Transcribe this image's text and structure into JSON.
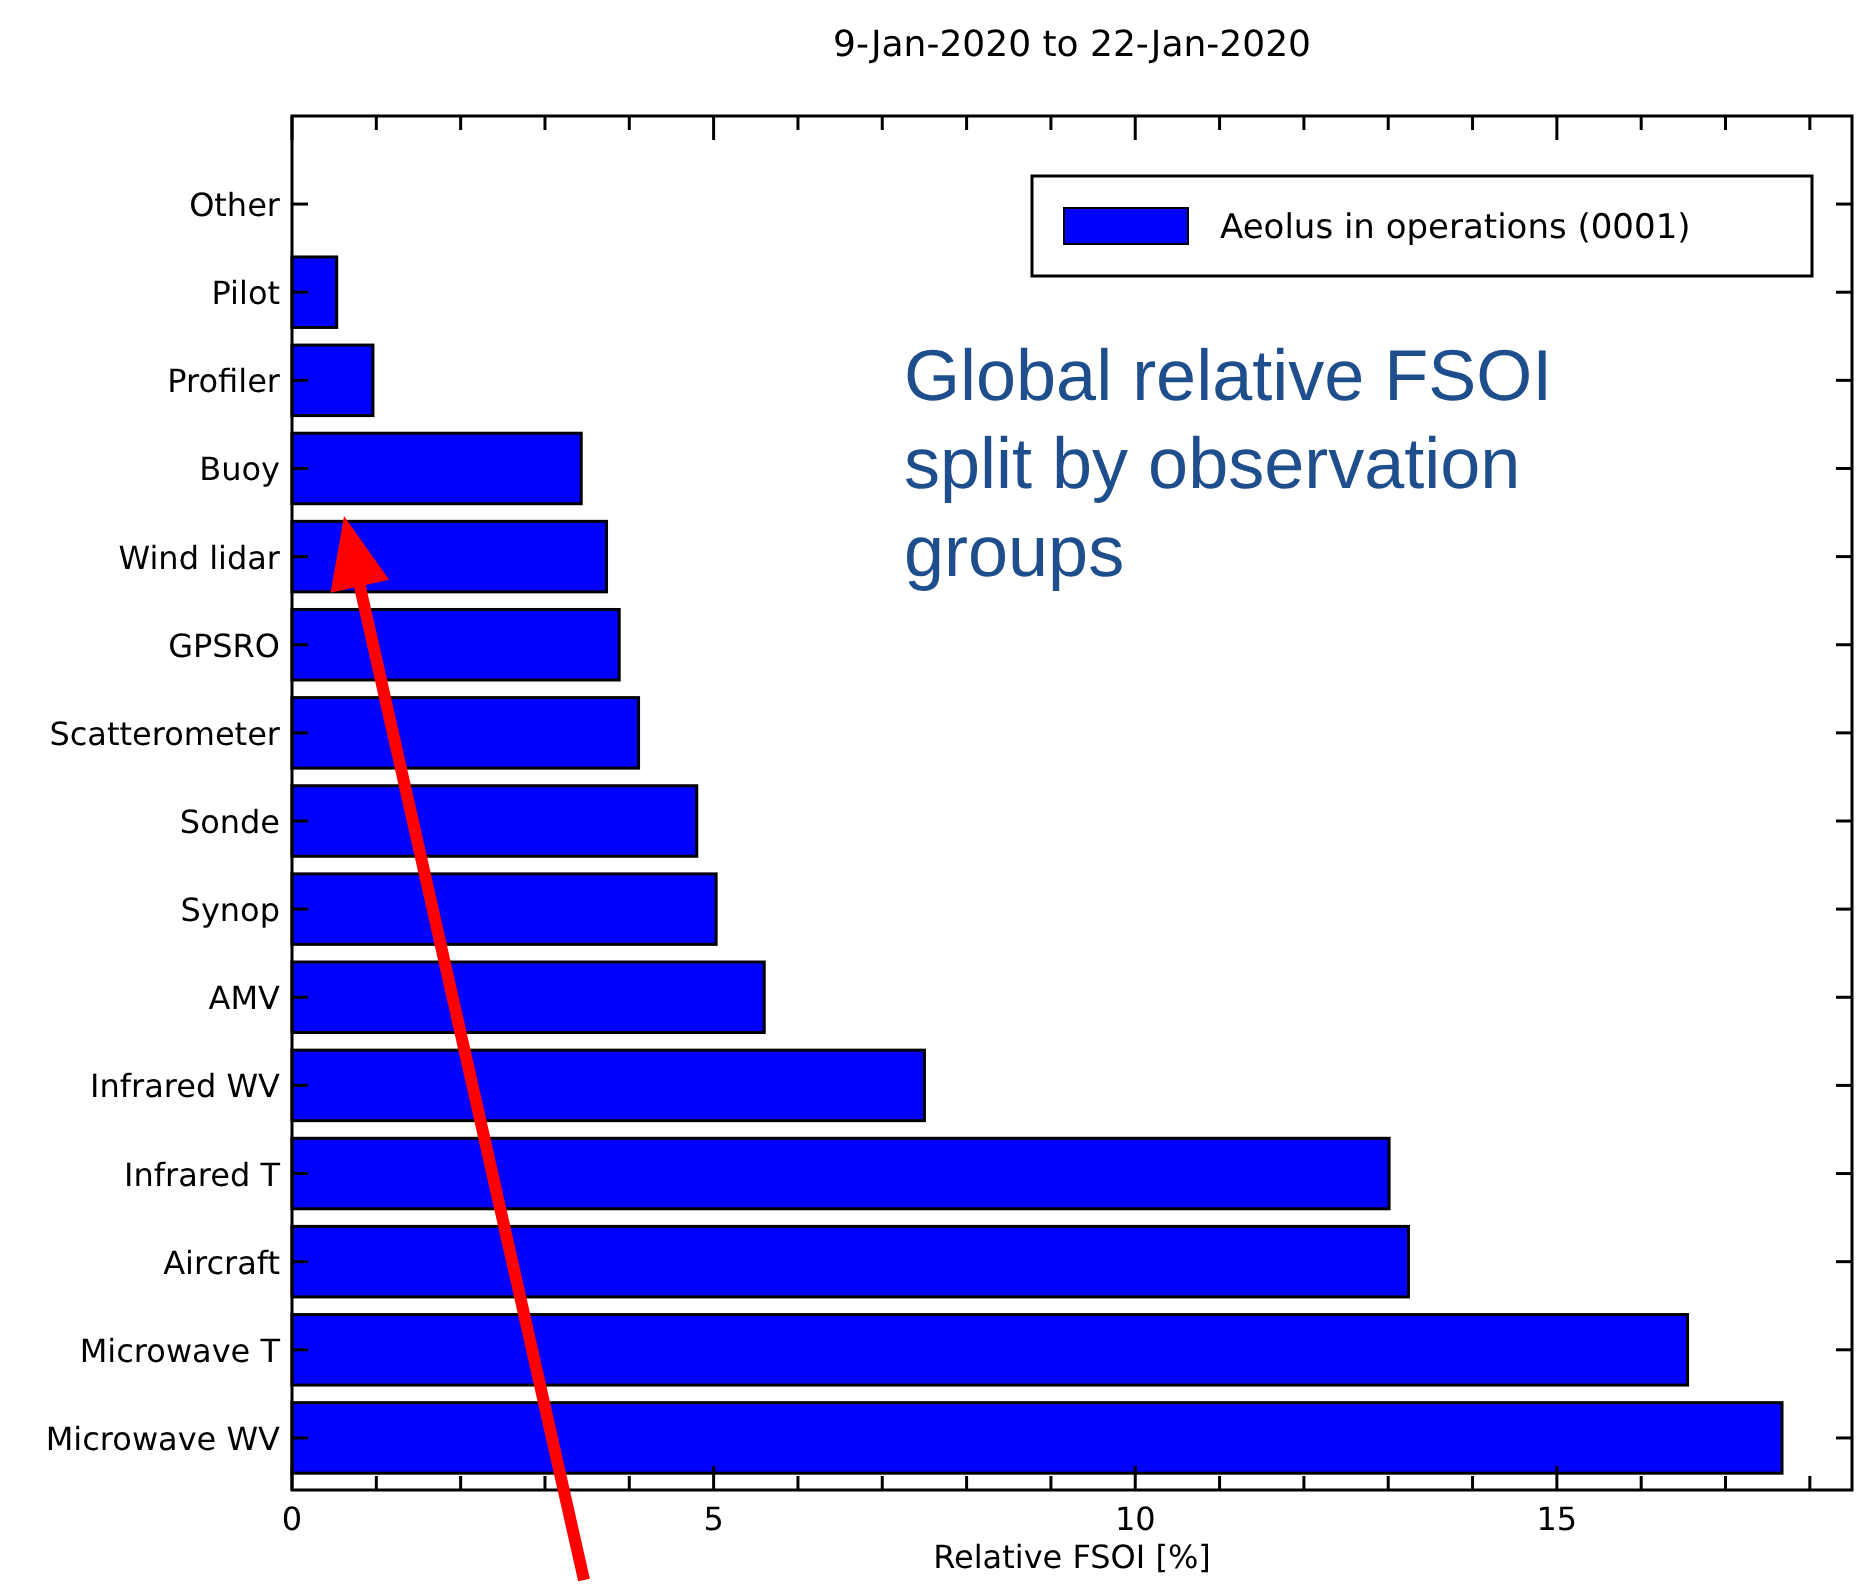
{
  "chart_data": {
    "type": "bar",
    "orientation": "horizontal",
    "title": "9-Jan-2020 to 22-Jan-2020",
    "xlabel": "Relative FSOI [%]",
    "categories": [
      "Other",
      "Pilot",
      "Profiler",
      "Buoy",
      "Wind lidar",
      "GPSRO",
      "Scatterometer",
      "Sonde",
      "Synop",
      "AMV",
      "Infrared WV",
      "Infrared T",
      "Aircraft",
      "Microwave T",
      "Microwave WV"
    ],
    "series": [
      {
        "name": "Aeolus in operations (0001)",
        "color": "#0000ff",
        "values": [
          0,
          0.53,
          0.96,
          3.43,
          3.73,
          3.88,
          4.11,
          4.8,
          5.03,
          5.6,
          7.5,
          13.01,
          13.24,
          16.55,
          17.67
        ]
      }
    ],
    "xlim": [
      0,
      18.5
    ],
    "xticks": [
      0,
      {
        "value": 1,
        "label": null
      },
      {
        "value": 2,
        "label": null
      },
      {
        "value": 3,
        "label": null
      },
      {
        "value": 4,
        "label": null
      },
      5,
      {
        "value": 6,
        "label": null
      },
      {
        "value": 7,
        "label": null
      },
      {
        "value": 8,
        "label": null
      },
      {
        "value": 9,
        "label": null
      },
      10,
      {
        "value": 11,
        "label": null
      },
      {
        "value": 12,
        "label": null
      },
      {
        "value": 13,
        "label": null
      },
      {
        "value": 14,
        "label": null
      },
      15,
      {
        "value": 16,
        "label": null
      },
      {
        "value": 17,
        "label": null
      },
      {
        "value": 18,
        "label": null
      }
    ],
    "legend": "top right",
    "annotations": [
      "Global relative FSOI split by observation groups"
    ]
  }
}
